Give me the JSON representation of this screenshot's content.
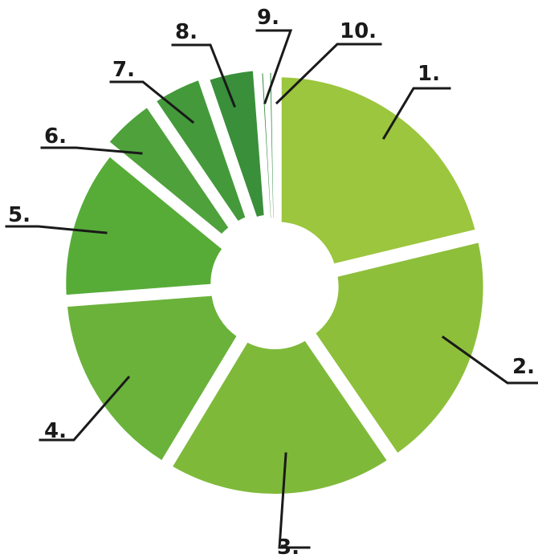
{
  "chart_data": {
    "type": "pie",
    "title": "",
    "categories": [
      "1.",
      "2.",
      "3.",
      "4.",
      "5.",
      "6.",
      "7.",
      "8.",
      "9.",
      "10."
    ],
    "values": [
      21,
      19,
      18,
      15,
      12,
      4.5,
      4.2,
      4.0,
      0.6,
      0.6
    ],
    "colors": [
      "#9BC63D",
      "#8DBF3B",
      "#7FB93A",
      "#6BB23B",
      "#57AC38",
      "#4FA13B",
      "#449A3A",
      "#3A8F3A",
      "#2F8B3C",
      "#2B8A3E"
    ]
  }
}
